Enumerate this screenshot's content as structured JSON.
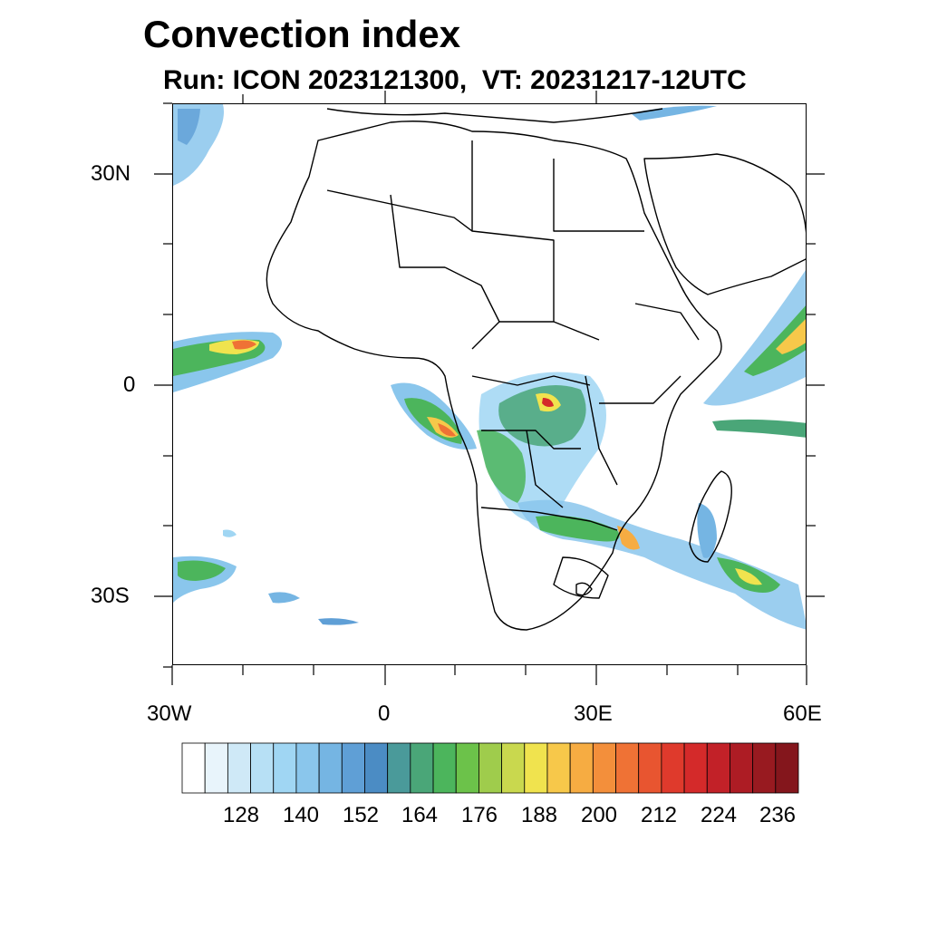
{
  "title": "Convection index",
  "subtitle": "Run: ICON 2023121300,  VT: 20231217-12UTC",
  "map": {
    "lat_labels": [
      "30N",
      "0",
      "30S"
    ],
    "lon_labels": [
      "30W",
      "0",
      "30E",
      "60E"
    ],
    "lat_range": [
      -40,
      40
    ],
    "lon_range": [
      -30,
      60
    ]
  },
  "colorbar": {
    "labels": [
      "128",
      "140",
      "152",
      "164",
      "176",
      "188",
      "200",
      "212",
      "224",
      "236"
    ],
    "colors": [
      "#ffffff",
      "#e8f4fb",
      "#cfe9f7",
      "#b7e0f5",
      "#a0d6f3",
      "#8ac6ec",
      "#75b5e3",
      "#5f9fd6",
      "#4b8cc4",
      "#4a9a9a",
      "#4aa678",
      "#4cb55c",
      "#6cc24a",
      "#9fcc4c",
      "#c9d84e",
      "#f0e34e",
      "#f7c84a",
      "#f6ac42",
      "#f38f3b",
      "#ef7235",
      "#e85530",
      "#df3a2c",
      "#d42a2a",
      "#c22128",
      "#ad1c24",
      "#981a20",
      "#84161c"
    ]
  }
}
